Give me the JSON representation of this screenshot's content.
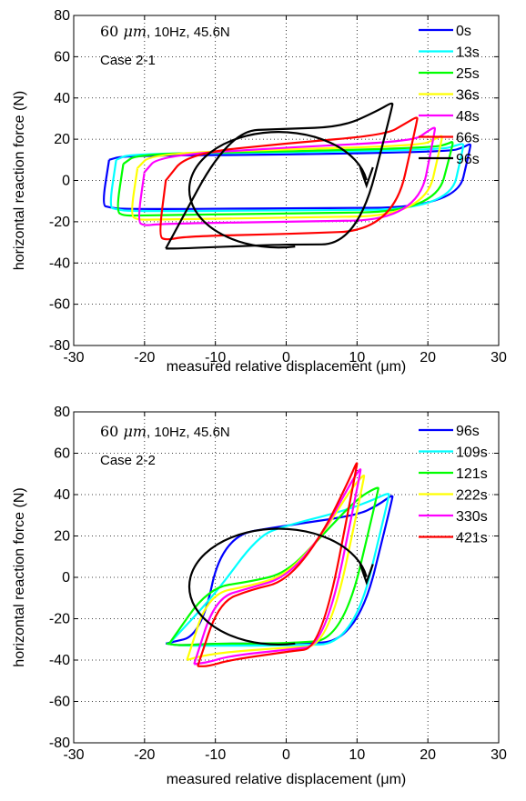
{
  "chart_data": [
    {
      "type": "line",
      "title": "",
      "xlabel": "measured relative displacement (μm)",
      "ylabel": "horizontal reaction force (N)",
      "xlim": [
        -30,
        30
      ],
      "ylim": [
        -80,
        80
      ],
      "xticks": [
        "-30",
        "-20",
        "-10",
        "0",
        "10",
        "20",
        "30"
      ],
      "yticks": [
        "80",
        "60",
        "40",
        "20",
        "0",
        "-20",
        "-40",
        "-60",
        "-80"
      ],
      "grid": true,
      "legend_position": "top-right",
      "annotation": {
        "condition_unit": "μm",
        "condition_amp": "60",
        "condition_rest": ", 10Hz, 45.6N",
        "case": "Case 2-1"
      },
      "rotation_arrow": "clockwise",
      "series": [
        {
          "name": "0s",
          "color": "#0000ff",
          "loop": {
            "xmin": -26,
            "xmax": 26,
            "top": [
              [
                -25,
                10
              ],
              [
                -23,
                12
              ],
              [
                0,
                12.5
              ],
              [
                23,
                14
              ],
              [
                25,
                16
              ],
              [
                26,
                18
              ]
            ],
            "bottom": [
              [
                26,
                16
              ],
              [
                24,
                -13
              ],
              [
                0,
                -13.5
              ],
              [
                -23,
                -14
              ],
              [
                -25,
                -13
              ],
              [
                -26,
                -12
              ]
            ]
          }
        },
        {
          "name": "13s",
          "color": "#00ffff",
          "loop": {
            "xmin": -25,
            "xmax": 25,
            "top": [
              [
                -24,
                10
              ],
              [
                -22,
                13
              ],
              [
                0,
                13.5
              ],
              [
                22,
                15
              ],
              [
                24,
                17
              ],
              [
                25,
                18
              ]
            ],
            "bottom": [
              [
                25,
                16
              ],
              [
                23,
                -14
              ],
              [
                0,
                -14.5
              ],
              [
                -22,
                -15
              ],
              [
                -24,
                -14
              ],
              [
                -25,
                -13
              ]
            ]
          }
        },
        {
          "name": "25s",
          "color": "#00ff00",
          "loop": {
            "xmin": -24,
            "xmax": 23.5,
            "top": [
              [
                -23,
                8
              ],
              [
                -21,
                13
              ],
              [
                0,
                14
              ],
              [
                21,
                16
              ],
              [
                23,
                18
              ],
              [
                23.5,
                19
              ]
            ],
            "bottom": [
              [
                23.5,
                17
              ],
              [
                21,
                -15
              ],
              [
                0,
                -16
              ],
              [
                -21,
                -17
              ],
              [
                -23,
                -17
              ],
              [
                -24,
                -15
              ]
            ]
          }
        },
        {
          "name": "36s",
          "color": "#ffff00",
          "loop": {
            "xmin": -22,
            "xmax": 22,
            "top": [
              [
                -21,
                6
              ],
              [
                -19,
                13
              ],
              [
                0,
                15
              ],
              [
                19,
                17
              ],
              [
                21,
                20
              ],
              [
                22,
                22
              ]
            ],
            "bottom": [
              [
                22,
                20
              ],
              [
                19.5,
                -17
              ],
              [
                0,
                -18
              ],
              [
                -19,
                -19
              ],
              [
                -21,
                -19
              ],
              [
                -22,
                -17
              ]
            ]
          }
        },
        {
          "name": "48s",
          "color": "#ff00ff",
          "loop": {
            "xmin": -21,
            "xmax": 21,
            "top": [
              [
                -20,
                4
              ],
              [
                -18,
                12
              ],
              [
                0,
                16
              ],
              [
                18,
                19
              ],
              [
                20,
                24
              ],
              [
                21,
                26
              ]
            ],
            "bottom": [
              [
                21,
                24
              ],
              [
                18.5,
                -19
              ],
              [
                0,
                -20
              ],
              [
                -18,
                -21
              ],
              [
                -20,
                -22
              ],
              [
                -21,
                -20
              ]
            ]
          }
        },
        {
          "name": "66s",
          "color": "#ff0000",
          "loop": {
            "xmin": -18,
            "xmax": 18.5,
            "top": [
              [
                -17,
                0
              ],
              [
                -14,
                13
              ],
              [
                0,
                18
              ],
              [
                14,
                22
              ],
              [
                17,
                28
              ],
              [
                18.5,
                31
              ]
            ],
            "bottom": [
              [
                18.5,
                29
              ],
              [
                15,
                -24
              ],
              [
                0,
                -26
              ],
              [
                -14,
                -27
              ],
              [
                -17,
                -29
              ],
              [
                -18,
                -27
              ]
            ]
          }
        },
        {
          "name": "96s",
          "color": "#000000",
          "loop": {
            "xmin": -17,
            "xmax": 15,
            "top": [
              [
                -17,
                -33
              ],
              [
                -8,
                24
              ],
              [
                0,
                25
              ],
              [
                8,
                26
              ],
              [
                13,
                34
              ],
              [
                15,
                38
              ]
            ],
            "bottom": [
              [
                15,
                36
              ],
              [
                10,
                -31
              ],
              [
                0,
                -31
              ],
              [
                -8,
                -32
              ],
              [
                -15,
                -33
              ],
              [
                -17,
                -33
              ]
            ]
          }
        }
      ]
    },
    {
      "type": "line",
      "title": "",
      "xlabel": "measured relative displacement (μm)",
      "ylabel": "horizontal reaction force (N)",
      "xlim": [
        -30,
        30
      ],
      "ylim": [
        -80,
        80
      ],
      "xticks": [
        "-30",
        "-20",
        "-10",
        "0",
        "10",
        "20",
        "30"
      ],
      "yticks": [
        "80",
        "60",
        "40",
        "20",
        "0",
        "-20",
        "-40",
        "-60",
        "-80"
      ],
      "grid": true,
      "legend_position": "top-right",
      "annotation": {
        "condition_unit": "μm",
        "condition_amp": "60",
        "condition_rest": ", 10Hz, 45.6N",
        "case": "Case 2-2"
      },
      "rotation_arrow": "clockwise",
      "series": [
        {
          "name": "96s",
          "color": "#0000ff",
          "loop": {
            "xmin": -17,
            "xmax": 15,
            "top": [
              [
                -17,
                -32
              ],
              [
                -12,
                -28
              ],
              [
                -9,
                20
              ],
              [
                0,
                25
              ],
              [
                10,
                30
              ],
              [
                13,
                35
              ],
              [
                15,
                40
              ]
            ],
            "bottom": [
              [
                15,
                38
              ],
              [
                10,
                -31
              ],
              [
                0,
                -32
              ],
              [
                -10,
                -32
              ],
              [
                -15,
                -33
              ],
              [
                -17,
                -32
              ]
            ]
          }
        },
        {
          "name": "109s",
          "color": "#00ffff",
          "loop": {
            "xmin": -17,
            "xmax": 14.5,
            "top": [
              [
                -16.5,
                -32
              ],
              [
                -10,
                -8
              ],
              [
                -4,
                20
              ],
              [
                0,
                25
              ],
              [
                8,
                32
              ],
              [
                12,
                37
              ],
              [
                14.5,
                41
              ]
            ],
            "bottom": [
              [
                14.5,
                39
              ],
              [
                9.5,
                -32
              ],
              [
                0,
                -33
              ],
              [
                -10,
                -33
              ],
              [
                -15,
                -33
              ],
              [
                -17,
                -32
              ]
            ]
          }
        },
        {
          "name": "121s",
          "color": "#00ff00",
          "loop": {
            "xmin": -17,
            "xmax": 13,
            "top": [
              [
                -16.5,
                -32
              ],
              [
                -11,
                -5
              ],
              [
                -5,
                -2
              ],
              [
                0,
                2
              ],
              [
                5,
                20
              ],
              [
                10,
                38
              ],
              [
                13,
                44
              ]
            ],
            "bottom": [
              [
                13,
                42
              ],
              [
                8,
                -30
              ],
              [
                0,
                -32
              ],
              [
                -10,
                -32
              ],
              [
                -15,
                -33
              ],
              [
                -17,
                -32
              ]
            ]
          }
        },
        {
          "name": "222s",
          "color": "#ffff00",
          "loop": {
            "xmin": -14,
            "xmax": 11,
            "top": [
              [
                -14,
                -40
              ],
              [
                -11,
                -8
              ],
              [
                -5,
                -4
              ],
              [
                0,
                1
              ],
              [
                5,
                20
              ],
              [
                9,
                42
              ],
              [
                11,
                50
              ]
            ],
            "bottom": [
              [
                11,
                48
              ],
              [
                6,
                -33
              ],
              [
                0,
                -34
              ],
              [
                -8,
                -36
              ],
              [
                -12,
                -38
              ],
              [
                -14,
                -40
              ]
            ]
          }
        },
        {
          "name": "330s",
          "color": "#ff00ff",
          "loop": {
            "xmin": -13,
            "xmax": 10.5,
            "top": [
              [
                -13,
                -42
              ],
              [
                -10,
                -10
              ],
              [
                -5,
                -5
              ],
              [
                0,
                0
              ],
              [
                5,
                20
              ],
              [
                9,
                45
              ],
              [
                10.5,
                53
              ]
            ],
            "bottom": [
              [
                10.5,
                51
              ],
              [
                5.5,
                -33
              ],
              [
                0,
                -35
              ],
              [
                -8,
                -38
              ],
              [
                -11,
                -41
              ],
              [
                -13,
                -42
              ]
            ]
          }
        },
        {
          "name": "421s",
          "color": "#ff0000",
          "loop": {
            "xmin": -12.5,
            "xmax": 10,
            "top": [
              [
                -12.5,
                -43
              ],
              [
                -9.5,
                -12
              ],
              [
                -5,
                -6
              ],
              [
                0,
                -2
              ],
              [
                5,
                20
              ],
              [
                9,
                48
              ],
              [
                10,
                56
              ]
            ],
            "bottom": [
              [
                10,
                54
              ],
              [
                5,
                -34
              ],
              [
                0,
                -36
              ],
              [
                -8,
                -40
              ],
              [
                -11,
                -43
              ],
              [
                -12.5,
                -43
              ]
            ]
          }
        }
      ]
    }
  ]
}
